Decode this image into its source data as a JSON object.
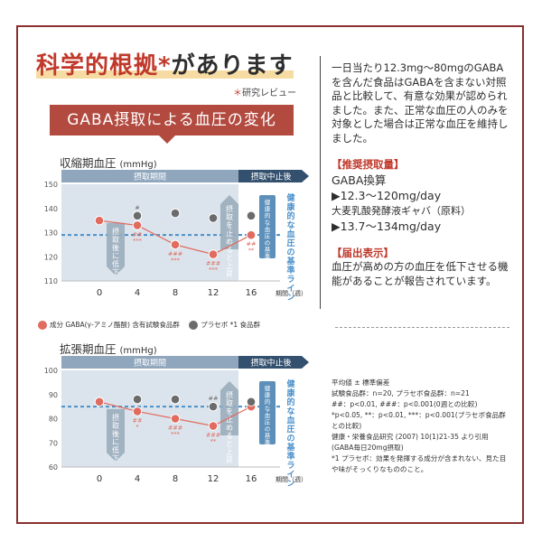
{
  "heading": {
    "main": "科学的根拠",
    "star": "*",
    "rest": "があります"
  },
  "subtitle": {
    "star": "＊",
    "text": "研究レビュー"
  },
  "banner": "GABA摂取による血圧の変化",
  "right_panel": {
    "intro": "一日当たり12.3mg～80mgのGABAを含んだ食品はGABAを含まない対照品と比較して、有意な効果が認められました。また、正常な血圧の人のみを対象とした場合は正常な血圧を維持しました。",
    "dose_head": "【推奨摂取量】",
    "dose_lines": [
      "GABA換算",
      "▶12.3～120mg/day",
      "大麦乳酸発酵液ギャバ（原料）",
      "▶13.7～134mg/day"
    ],
    "claim_head": "【届出表示】",
    "claim_text": "血圧が高めの方の血圧を低下させる機能があることが報告されています。"
  },
  "footnotes": [
    "平均値 ± 標準偏差",
    "試験食品群：n=20, プラセボ食品群：n=21",
    "##：p<0.01, ###：p<0.001(0週との比較)",
    "*p<0.05, **：p<0.01, ***：p<0.001(プラセボ食品群との比較)",
    "健康・栄養食品研究 (2007) 10(1)21-35 より引用 (GABA毎日20mg摂取)",
    "*1 プラセボ：効果を発揮する成分が含まれない、見た目や味がそっくりなもののこと。"
  ],
  "legend": {
    "gaba": "成分 GABA(γ-アミノ酪酸) 含有試験食品群",
    "placebo": "プラセボ *1 食品群"
  },
  "colors": {
    "gaba": "#e06b5e",
    "placebo": "#6b6b6b",
    "intake_band": "#dbe4ec",
    "stop_band": "#33506e",
    "baseline": "#4a8fc9"
  },
  "chart_data": [
    {
      "type": "line",
      "title": "収縮期血圧",
      "unit": "(mmHg)",
      "x": [
        0,
        4,
        8,
        12,
        16
      ],
      "xlabel": "期間（週）",
      "ylim": [
        110,
        150
      ],
      "yticks": [
        110,
        120,
        130,
        140,
        150
      ],
      "phase_intake": "摂取期間",
      "phase_stop": "摂取中止後",
      "note_down": "摂取後に低下",
      "note_up": "摂取を止めると上昇",
      "baseline_label": "健康的な血圧の基準ライン",
      "baseline_side": "健康的な血圧の基準ライン",
      "baseline": 129,
      "series": [
        {
          "key": "gaba",
          "values": [
            135,
            133,
            125,
            121,
            129
          ],
          "marks": [
            "",
            "##\n***",
            "###\n***",
            "###\n***",
            "##\n**"
          ]
        },
        {
          "key": "placebo",
          "values": [
            null,
            137,
            138,
            136,
            137
          ],
          "marks": [
            "",
            "#",
            "",
            "",
            ""
          ]
        }
      ]
    },
    {
      "type": "line",
      "title": "拡張期血圧",
      "unit": "(mmHg)",
      "x": [
        0,
        4,
        8,
        12,
        16
      ],
      "xlabel": "期間（週）",
      "ylim": [
        60,
        100
      ],
      "yticks": [
        60,
        70,
        80,
        90,
        100
      ],
      "phase_intake": "摂取期間",
      "phase_stop": "摂取中止後",
      "note_down": "摂取後に低下",
      "note_up": "摂取を止めると上昇",
      "baseline_label": "健康的な血圧の基準ライン",
      "baseline_side": "健康的な血圧の基準ライン",
      "baseline": 85,
      "series": [
        {
          "key": "gaba",
          "values": [
            87,
            83,
            80,
            77,
            85
          ],
          "marks": [
            "",
            "##\n*",
            "###\n***",
            "###\n**",
            ""
          ]
        },
        {
          "key": "placebo",
          "values": [
            null,
            88,
            88,
            85,
            87
          ],
          "marks": [
            "",
            "",
            "",
            "##",
            ""
          ]
        }
      ]
    }
  ]
}
